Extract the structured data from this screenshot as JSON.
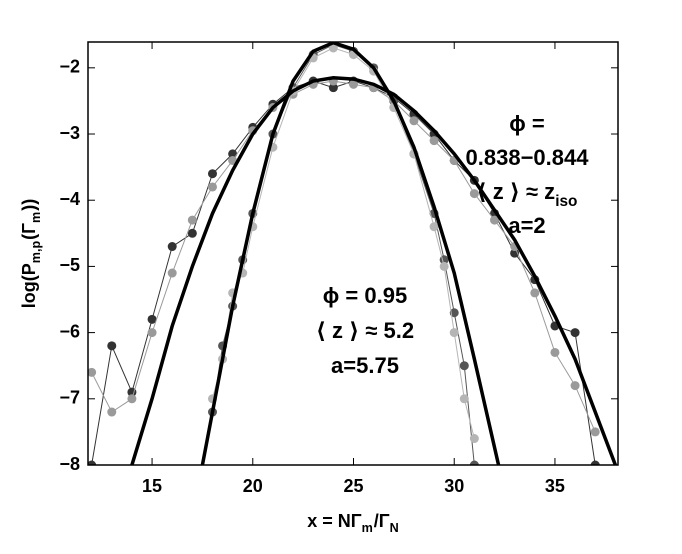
{
  "chart_data": {
    "type": "line",
    "xlabel": [
      {
        "text": "x = NΓ"
      },
      {
        "text": "m",
        "sub": true
      },
      {
        "text": " /Γ"
      },
      {
        "text": "N",
        "sub": true
      }
    ],
    "ylabel": [
      {
        "text": "log(P"
      },
      {
        "text": "m,p",
        "sub": true
      },
      {
        "text": "(Γ"
      },
      {
        "text": "m",
        "sub": true
      },
      {
        "text": "))"
      }
    ],
    "xlim": [
      11.82,
      38.13
    ],
    "ylim": [
      -8,
      -1.61
    ],
    "xticks": [
      15,
      20,
      25,
      30,
      35
    ],
    "yticks": [
      -2,
      -3,
      -4,
      -5,
      -6,
      -7,
      -8
    ],
    "annotations": [
      {
        "lines": [
          [
            {
              "text": "ϕ ="
            }
          ],
          [
            {
              "text": "0.838−0.844"
            }
          ],
          [
            {
              "text": "⟨ z ⟩ ≈ z"
            },
            {
              "text": "iso",
              "sub": true
            }
          ],
          [
            {
              "text": "a=2"
            }
          ]
        ]
      },
      {
        "lines": [
          [
            {
              "text": "ϕ = 0.95"
            }
          ],
          [
            {
              "text": "⟨ z ⟩ ≈ 5.2"
            }
          ],
          [
            {
              "text": "a=5.75"
            }
          ]
        ]
      }
    ],
    "series": [
      {
        "color": "#333333",
        "markers": true,
        "x": [
          12,
          13,
          14,
          15,
          16,
          17,
          18,
          19,
          20,
          21,
          22,
          23,
          24,
          25,
          26,
          27,
          28,
          29,
          30,
          31,
          32,
          33,
          34,
          35,
          36,
          37
        ],
        "values": [
          -8,
          -6.2,
          -6.9,
          -5.8,
          -4.7,
          -4.5,
          -3.6,
          -3.3,
          -2.9,
          -2.55,
          -2.3,
          -2.2,
          -2.3,
          -2.2,
          -2.3,
          -2.45,
          -2.7,
          -3.0,
          -3.4,
          -3.7,
          -4.2,
          -4.8,
          -5.2,
          -5.9,
          -6.0,
          -8
        ]
      },
      {
        "color": "#9a9a9a",
        "markers": true,
        "x": [
          12,
          13,
          14,
          15,
          16,
          17,
          18,
          19,
          20,
          21,
          22,
          23,
          24,
          25,
          26,
          27,
          28,
          29,
          30,
          31,
          32,
          33,
          34,
          35,
          36,
          37
        ],
        "values": [
          -6.6,
          -7.2,
          -7.0,
          -6.0,
          -5.1,
          -4.3,
          -3.8,
          -3.4,
          -2.95,
          -2.6,
          -2.4,
          -2.25,
          -2.2,
          -2.25,
          -2.3,
          -2.5,
          -2.8,
          -3.1,
          -3.4,
          -3.9,
          -4.3,
          -4.7,
          -5.4,
          -6.3,
          -6.8,
          -7.5
        ]
      },
      {
        "color": "#555555",
        "markers": true,
        "x": [
          18,
          18.5,
          19,
          19.5,
          20,
          21,
          22,
          23,
          24,
          25,
          26,
          27,
          28,
          29,
          29.5,
          30,
          30.5,
          31
        ],
        "values": [
          -7.2,
          -6.2,
          -5.6,
          -4.9,
          -4.2,
          -3.0,
          -2.3,
          -1.8,
          -1.65,
          -1.75,
          -2.0,
          -2.5,
          -3.3,
          -4.2,
          -4.9,
          -5.7,
          -6.5,
          -8
        ]
      },
      {
        "color": "#b5b5b5",
        "markers": true,
        "x": [
          18,
          18.5,
          19,
          19.5,
          20,
          21,
          22,
          23,
          24,
          25,
          26,
          27,
          28,
          29,
          29.5,
          30,
          30.5,
          31
        ],
        "values": [
          -7.0,
          -6.4,
          -5.4,
          -5.1,
          -4.4,
          -3.2,
          -2.35,
          -1.85,
          -1.7,
          -1.8,
          -2.05,
          -2.6,
          -3.3,
          -4.4,
          -5.0,
          -6.0,
          -7.0,
          -7.6
        ]
      },
      {
        "color": "#000000",
        "markers": false,
        "x": [
          17.5,
          18,
          19,
          20,
          21,
          22,
          23,
          24,
          25,
          26,
          27,
          28,
          29,
          30,
          31,
          32.2
        ],
        "values": [
          -8,
          -7.2,
          -5.6,
          -4.2,
          -3.0,
          -2.2,
          -1.75,
          -1.62,
          -1.72,
          -2.0,
          -2.5,
          -3.2,
          -4.1,
          -5.1,
          -6.4,
          -8
        ]
      },
      {
        "color": "#000000",
        "markers": false,
        "x": [
          14,
          15,
          16,
          17,
          18,
          19,
          20,
          21,
          22,
          23,
          24,
          25,
          26,
          27,
          28,
          29,
          30,
          31,
          32,
          33,
          34,
          35,
          36,
          37,
          38
        ],
        "values": [
          -8,
          -7.0,
          -5.9,
          -5.0,
          -4.2,
          -3.55,
          -3.0,
          -2.6,
          -2.35,
          -2.2,
          -2.15,
          -2.17,
          -2.25,
          -2.4,
          -2.65,
          -2.95,
          -3.3,
          -3.7,
          -4.15,
          -4.6,
          -5.15,
          -5.75,
          -6.4,
          -7.2,
          -8
        ]
      }
    ]
  }
}
